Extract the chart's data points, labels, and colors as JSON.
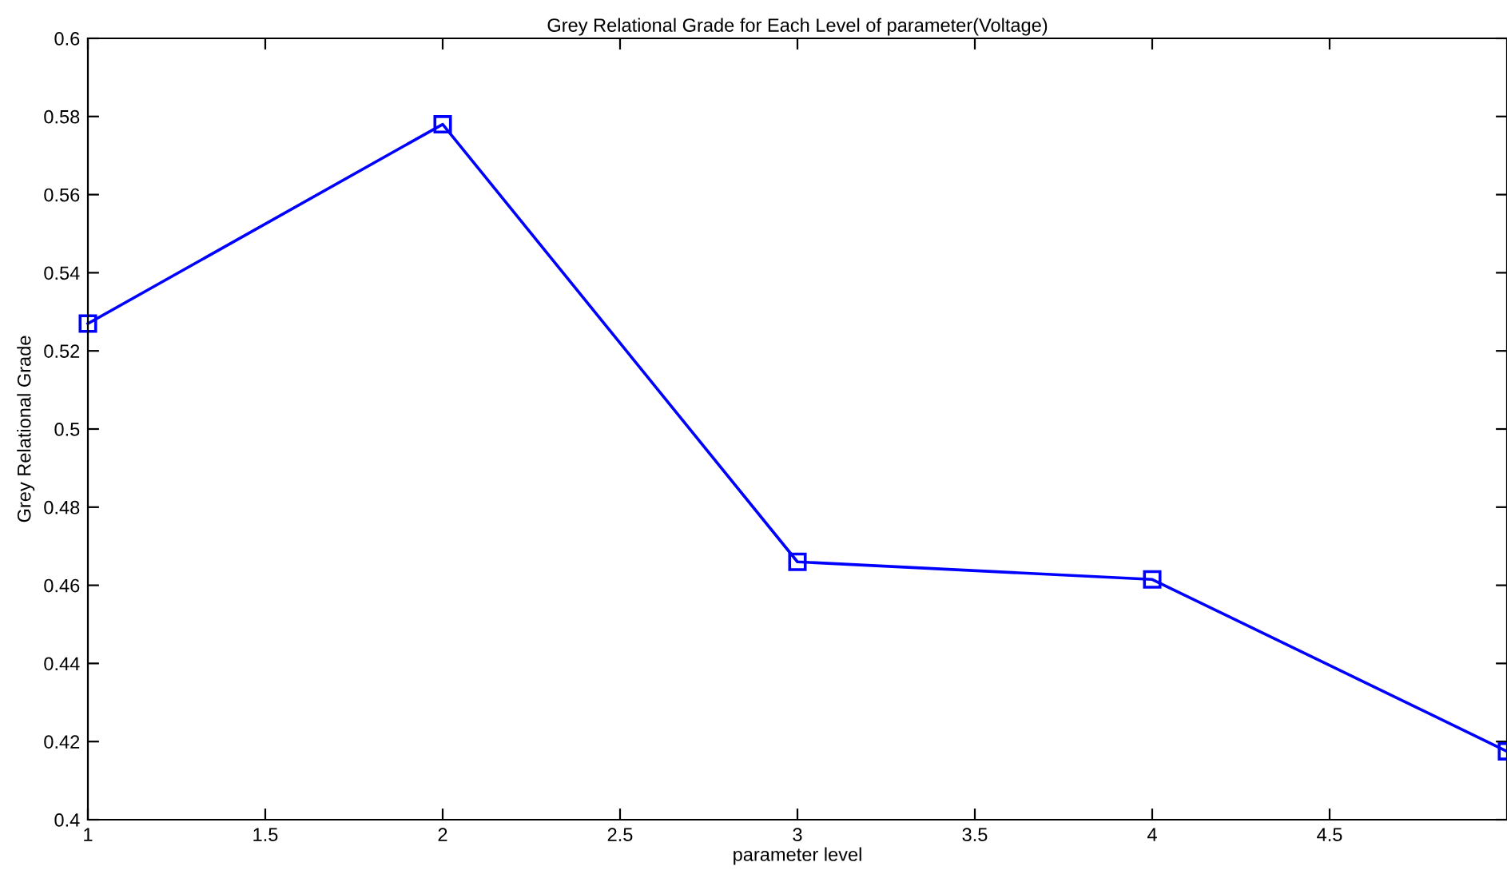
{
  "chart_data": {
    "type": "line",
    "title": "Grey Relational Grade for Each Level of parameter(Voltage)",
    "xlabel": "parameter level",
    "ylabel": "Grey Relational Grade",
    "x": [
      1,
      2,
      3,
      4,
      5
    ],
    "series": [
      {
        "color": "#0000ff",
        "values": [
          0.527,
          0.578,
          0.466,
          0.4615,
          0.4175
        ]
      }
    ],
    "marker": "square",
    "line_style": "solid",
    "xlim": [
      1,
      5
    ],
    "xticks": [
      1,
      1.5,
      2,
      2.5,
      3,
      3.5,
      4,
      4.5
    ],
    "ylim": [
      0.4,
      0.6
    ],
    "yticks": [
      0.4,
      0.42,
      0.44,
      0.46,
      0.48,
      0.5,
      0.52,
      0.54,
      0.56,
      0.58,
      0.6
    ],
    "grid": false,
    "legend": false
  }
}
